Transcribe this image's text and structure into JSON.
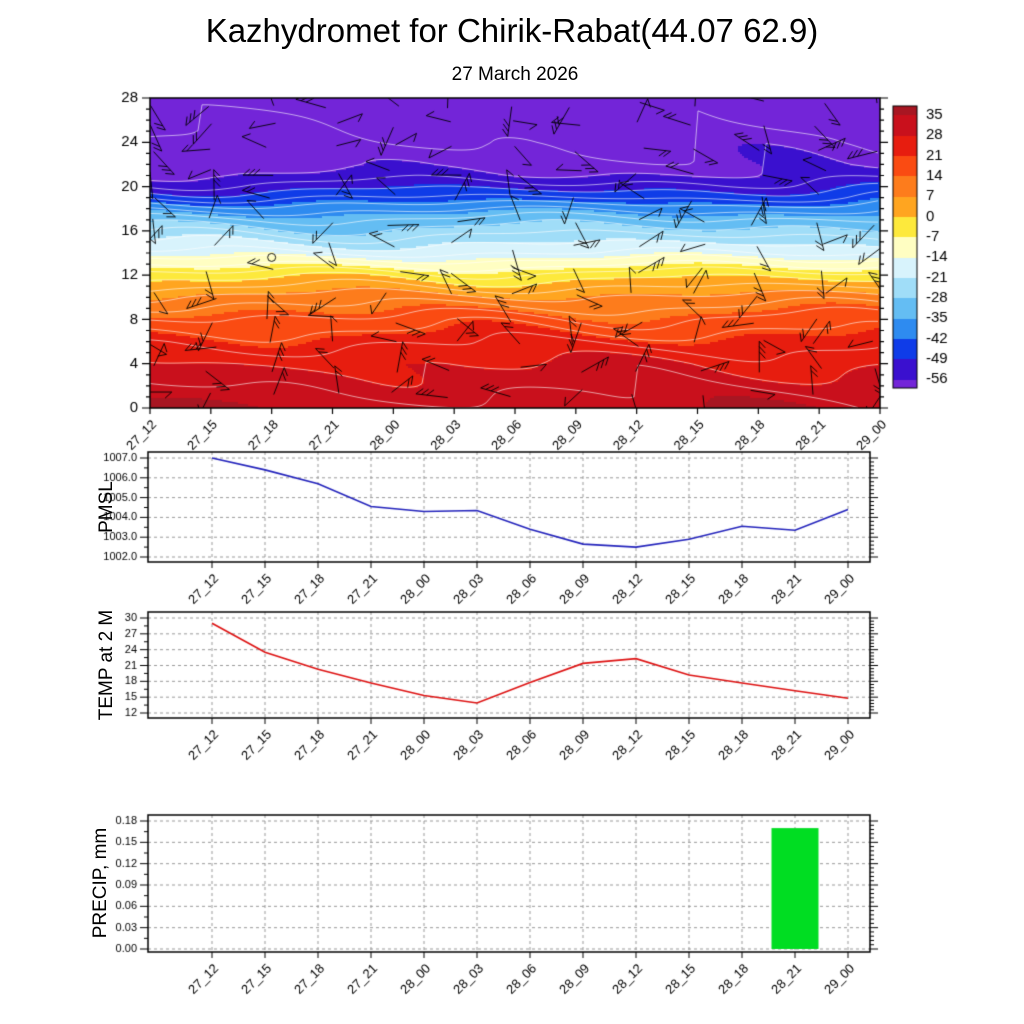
{
  "title": "Kazhydromet for Chirik-Rabat(44.07 62.9)",
  "subtitle": "27 March 2026",
  "time_labels": [
    "27_12",
    "27_15",
    "27_18",
    "27_21",
    "28_00",
    "28_03",
    "28_06",
    "28_09",
    "28_12",
    "28_15",
    "28_18",
    "28_21",
    "29_00"
  ],
  "chart_data": [
    {
      "type": "heatmap",
      "name": "temperature-height-cross-section",
      "categories": [
        "27_12",
        "27_15",
        "27_18",
        "27_21",
        "28_00",
        "28_03",
        "28_06",
        "28_09",
        "28_12",
        "28_15",
        "28_18",
        "28_21",
        "29_00"
      ],
      "ylim": [
        0,
        28
      ],
      "yticks": [
        0,
        4,
        8,
        12,
        16,
        20,
        24,
        28
      ],
      "colorbar_ticks": [
        35,
        28,
        21,
        14,
        7,
        0,
        -7,
        -14,
        -21,
        -28,
        -35,
        -42,
        -49,
        -56
      ],
      "palette_thresholds": [
        35,
        28,
        21,
        14,
        7,
        0,
        -7,
        -14,
        -21,
        -28,
        -35,
        -42,
        -49,
        -56
      ],
      "palette_colors": [
        "#a81622",
        "#c9101c",
        "#e71d0f",
        "#fa4b12",
        "#fd7c1c",
        "#ffa520",
        "#fde93c",
        "#fffec2",
        "#d8f3fc",
        "#a0ddf8",
        "#64bdf3",
        "#2e8bf0",
        "#0f3ce8",
        "#3a10cf",
        "#7325d8"
      ],
      "temp_profile_heights": [
        0,
        2,
        4,
        6,
        8,
        10,
        12,
        13,
        14,
        15,
        16,
        17,
        18,
        19,
        20,
        21,
        22,
        24,
        28
      ],
      "temp_profile_temps": [
        34,
        31,
        28,
        23,
        17,
        9,
        -2,
        -9,
        -16,
        -21,
        -26,
        -31,
        -37,
        -44,
        -50,
        -55,
        -58,
        -60,
        -62
      ],
      "contour_interval": 4,
      "contour_color": "#ffffff",
      "wind_levels": [
        1.3,
        3.5,
        5.8,
        8,
        10.2,
        12.4,
        14.6,
        16.8,
        19,
        21.2,
        23.4,
        25.6,
        27.4
      ]
    },
    {
      "type": "line",
      "name": "pmsl",
      "ylabel": "PMSL",
      "line_color": "#2222bb",
      "categories": [
        "27_12",
        "27_15",
        "27_18",
        "27_21",
        "28_00",
        "28_03",
        "28_06",
        "28_09",
        "28_12",
        "28_15",
        "28_18",
        "28_21",
        "29_00"
      ],
      "values": [
        1007.0,
        1006.4,
        1005.7,
        1004.55,
        1004.3,
        1004.35,
        1003.4,
        1002.65,
        1002.5,
        1002.9,
        1003.55,
        1003.35,
        1004.4
      ],
      "ylim": [
        1002.0,
        1007.0
      ],
      "yticks": [
        1002.0,
        1003.0,
        1004.0,
        1005.0,
        1006.0,
        1007.0
      ],
      "ytick_labels": [
        "1002.0",
        "1003.0",
        "1004.0",
        "1005.0",
        "1006.0",
        "1007.0"
      ]
    },
    {
      "type": "line",
      "name": "temp-at-2m",
      "ylabel": "TEMP at 2 M",
      "line_color": "#dd1111",
      "categories": [
        "27_12",
        "27_15",
        "27_18",
        "27_21",
        "28_00",
        "28_03",
        "28_06",
        "28_09",
        "28_12",
        "28_15",
        "28_18",
        "28_21",
        "29_00"
      ],
      "values": [
        29.0,
        23.5,
        20.3,
        17.7,
        15.3,
        13.9,
        17.8,
        21.4,
        22.3,
        19.2,
        17.7,
        16.2,
        14.8
      ],
      "ylim": [
        12,
        30
      ],
      "yticks": [
        12,
        15,
        18,
        21,
        24,
        27,
        30
      ],
      "ytick_labels": [
        "12",
        "15",
        "18",
        "21",
        "24",
        "27",
        "30"
      ]
    },
    {
      "type": "bar",
      "name": "precip",
      "ylabel": "PRECIP, mm",
      "bar_color": "#00dd22",
      "categories": [
        "27_12",
        "27_15",
        "27_18",
        "27_21",
        "28_00",
        "28_03",
        "28_06",
        "28_09",
        "28_12",
        "28_15",
        "28_18",
        "28_21",
        "29_00"
      ],
      "values": [
        0,
        0,
        0,
        0,
        0,
        0,
        0,
        0,
        0,
        0,
        0,
        0.17,
        0
      ],
      "ylim": [
        0,
        0.18
      ],
      "yticks": [
        0,
        0.03,
        0.06,
        0.09,
        0.12,
        0.15,
        0.18
      ],
      "ytick_labels": [
        "0.00",
        "0.03",
        "0.06",
        "0.09",
        "0.12",
        "0.15",
        "0.18"
      ]
    }
  ]
}
